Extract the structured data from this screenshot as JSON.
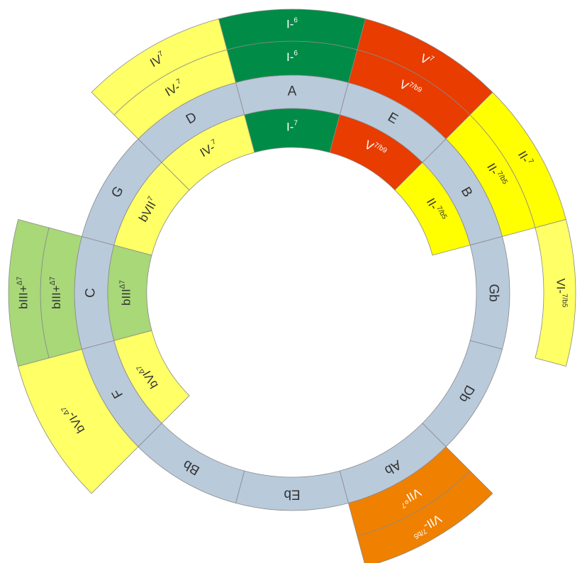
{
  "ring_color": "#b9cadb",
  "keys": [
    {
      "name": "A",
      "inner": {
        "label": "I-",
        "sup": "7",
        "color": "#008c46"
      },
      "ring1": {
        "label": "I-",
        "sup": "6",
        "color": "#008c46"
      },
      "ring2": {
        "label": "I-",
        "sup": "6",
        "color": "#008c46"
      }
    },
    {
      "name": "E",
      "inner": {
        "label": "V",
        "sup": "7/b9",
        "color": "#e83c00"
      },
      "ring1": {
        "label": "V",
        "sup": "7/b9",
        "color": "#e83c00"
      },
      "ring2": {
        "label": "V",
        "sup": "7",
        "color": "#e83c00"
      }
    },
    {
      "name": "B",
      "inner": {
        "label": "II-",
        "sup": "7/b5",
        "color": "#ffff00"
      },
      "ring1": {
        "label": "II-",
        "sup": "7/b5",
        "color": "#ffff00"
      },
      "ring2": {
        "label": "II-",
        "sup": "7",
        "color": "#ffff00"
      }
    },
    {
      "name": "Gb",
      "ring2": {
        "label": "VI-",
        "sup": "7/b5",
        "color": "#ffff66"
      }
    },
    {
      "name": "Db"
    },
    {
      "name": "Ab",
      "ring1": {
        "label": "VII°",
        "sup": "7",
        "color": "#f08000"
      },
      "ring2": {
        "label": "VII-",
        "sup": "7/b5",
        "color": "#f08000"
      }
    },
    {
      "name": "Eb"
    },
    {
      "name": "Bb"
    },
    {
      "name": "F",
      "inner": {
        "label": "bVI",
        "sup": "Δ7",
        "color": "#ffff66"
      },
      "outer": {
        "label": "bVI-",
        "sup": "Δ7",
        "color": "#ffff66"
      }
    },
    {
      "name": "C",
      "inner": {
        "label": "bIII",
        "sup": "Δ7",
        "color": "#a8d878"
      },
      "ring1": {
        "label": "bIII+",
        "sup": "Δ7",
        "color": "#a8d878"
      },
      "ring2": {
        "label": "bIII+",
        "sup": "Δ7",
        "color": "#a8d878"
      }
    },
    {
      "name": "G",
      "inner": {
        "label": "bVII",
        "sup": "7",
        "color": "#ffff66"
      }
    },
    {
      "name": "D",
      "inner": {
        "label": "IV-",
        "sup": "7",
        "color": "#ffff66"
      },
      "ring1": {
        "label": "IV-",
        "sup": "7",
        "color": "#ffff66"
      },
      "ring2": {
        "label": "IV",
        "sup": "7",
        "color": "#ffff66"
      }
    }
  ]
}
